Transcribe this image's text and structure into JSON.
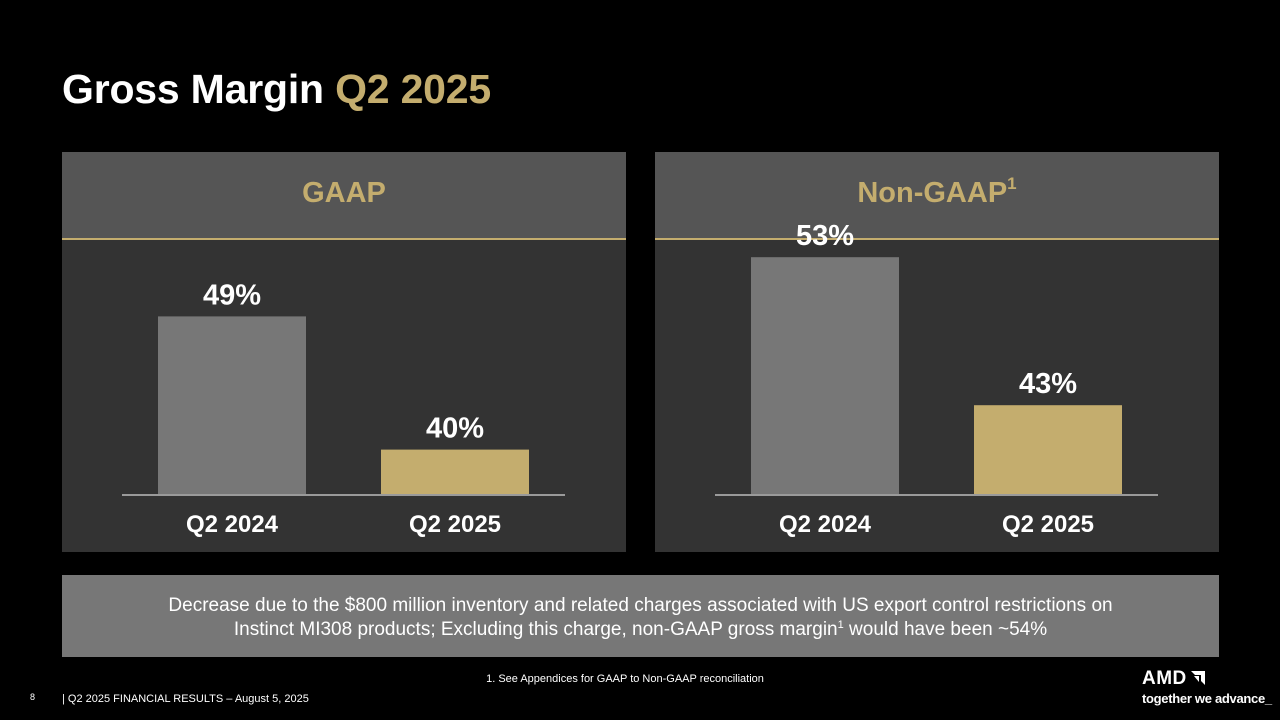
{
  "title": {
    "main": "Gross Margin",
    "accent": "Q2 2025"
  },
  "colors": {
    "accent": "#c4ad6e",
    "bar_prior": "#777777",
    "bar_current": "#c4ad6e",
    "panel_bg": "#333333",
    "header_bg": "#555555"
  },
  "chart_data": [
    {
      "type": "bar",
      "title": "GAAP",
      "title_sup": "",
      "categories": [
        "Q2 2024",
        "Q2 2025"
      ],
      "values": [
        49,
        40
      ],
      "value_labels": [
        "49%",
        "40%"
      ],
      "ylim": [
        37,
        52
      ],
      "grid": false
    },
    {
      "type": "bar",
      "title": "Non-GAAP",
      "title_sup": "1",
      "categories": [
        "Q2 2024",
        "Q2 2025"
      ],
      "values": [
        53,
        43
      ],
      "value_labels": [
        "53%",
        "43%"
      ],
      "ylim": [
        37,
        52
      ],
      "grid": false
    }
  ],
  "note": {
    "line1": "Decrease due to the $800 million inventory and related charges associated with US export control restrictions on",
    "line2_a": "Instinct MI308 products; Excluding this charge, non-GAAP gross margin",
    "line2_sup": "1",
    "line2_b": " would have been ~54%"
  },
  "footnote": "1. See Appendices for GAAP to Non-GAAP reconciliation",
  "footer": {
    "page": "8",
    "text": "|   Q2 2025 FINANCIAL RESULTS – August 5, 2025"
  },
  "logo": {
    "word": "AMD",
    "tagline": "together we advance_"
  }
}
